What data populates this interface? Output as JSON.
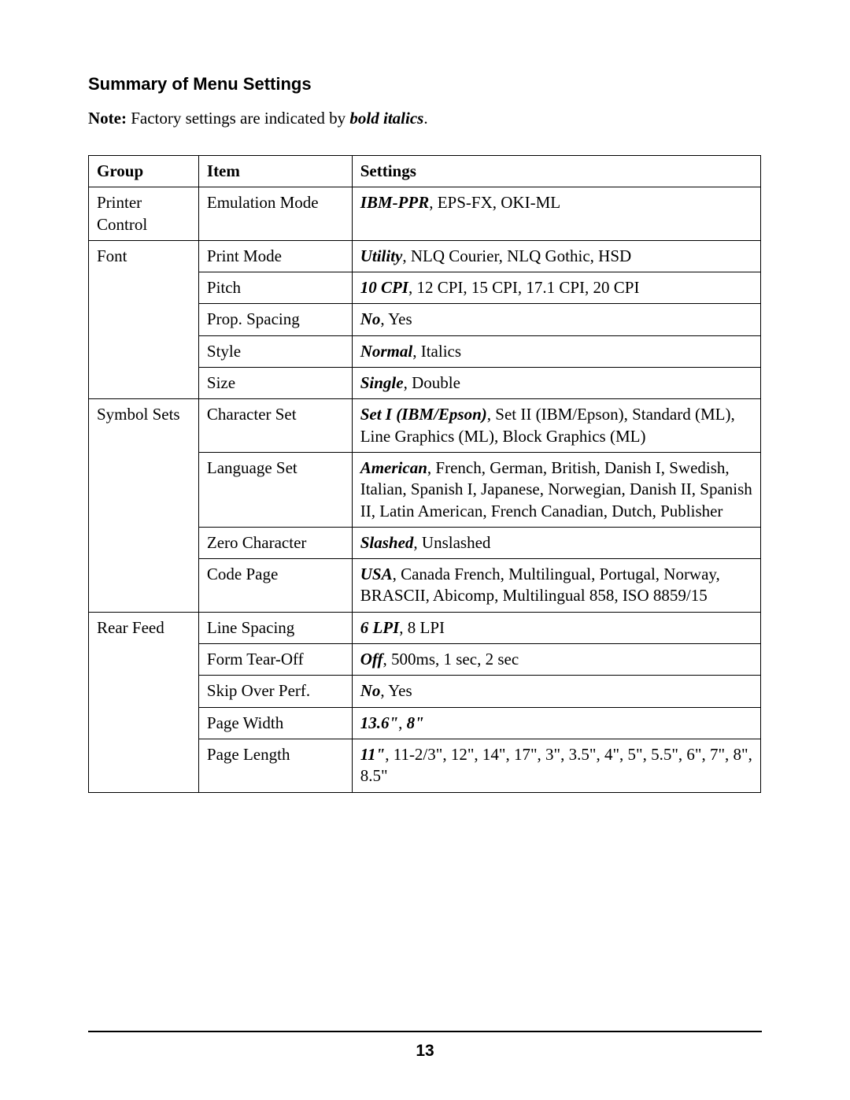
{
  "title": "Summary of Menu Settings",
  "note_prefix": "Note:",
  "note_mid": "  Factory settings are indicated by ",
  "note_bold_italic": "bold italics",
  "note_suffix": ".",
  "headers": {
    "group": "Group",
    "item": "Item",
    "settings": "Settings"
  },
  "groups": [
    {
      "name": "Printer Control",
      "rows": [
        {
          "item": "Emulation Mode",
          "factory": "IBM-PPR",
          "rest": ", EPS-FX, OKI-ML"
        }
      ]
    },
    {
      "name": "Font",
      "rows": [
        {
          "item": "Print Mode",
          "factory": "Utility",
          "rest": ", NLQ Courier, NLQ Gothic, HSD"
        },
        {
          "item": "Pitch",
          "factory": "10 CPI",
          "rest": ", 12 CPI, 15 CPI, 17.1 CPI, 20 CPI"
        },
        {
          "item": "Prop. Spacing",
          "factory": "No",
          "rest": ", Yes"
        },
        {
          "item": "Style",
          "factory": "Normal",
          "rest": ", Italics"
        },
        {
          "item": "Size",
          "factory": "Single",
          "rest": ", Double"
        }
      ]
    },
    {
      "name": "Symbol Sets",
      "rows": [
        {
          "item": "Character Set",
          "factory": "Set I (IBM/Epson)",
          "rest": ", Set II (IBM/Epson), Standard (ML), Line Graphics (ML), Block Graphics (ML)"
        },
        {
          "item": "Language Set",
          "factory": "American",
          "rest": ", French, German, British, Danish I, Swedish, Italian, Spanish I, Japanese, Norwegian, Danish II, Spanish II, Latin American, French Canadian, Dutch, Publisher"
        },
        {
          "item": "Zero Character",
          "factory": "Slashed",
          "rest": ", Unslashed"
        },
        {
          "item": "Code Page",
          "factory": "USA",
          "rest": ", Canada French, Multilingual, Portugal, Norway, BRASCII, Abicomp, Multilingual 858, ISO 8859/15"
        }
      ]
    },
    {
      "name": "Rear Feed",
      "rows": [
        {
          "item": "Line Spacing",
          "factory": "6 LPI",
          "rest": ", 8 LPI"
        },
        {
          "item": "Form Tear-Off",
          "factory": "Off",
          "rest": ", 500ms, 1 sec, 2 sec"
        },
        {
          "item": "Skip Over Perf.",
          "factory": "No",
          "rest": ", Yes"
        },
        {
          "item": "Page Width",
          "factory": "13.6\"",
          "factory2": "8\"",
          "sep": ", ",
          "rest": ""
        },
        {
          "item": "Page Length",
          "factory": "11\"",
          "rest": ", 11-2/3\", 12\", 14\", 17\", 3\", 3.5\", 4\", 5\", 5.5\", 6\",  7\", 8\", 8.5\""
        }
      ]
    }
  ],
  "page_number": "13"
}
